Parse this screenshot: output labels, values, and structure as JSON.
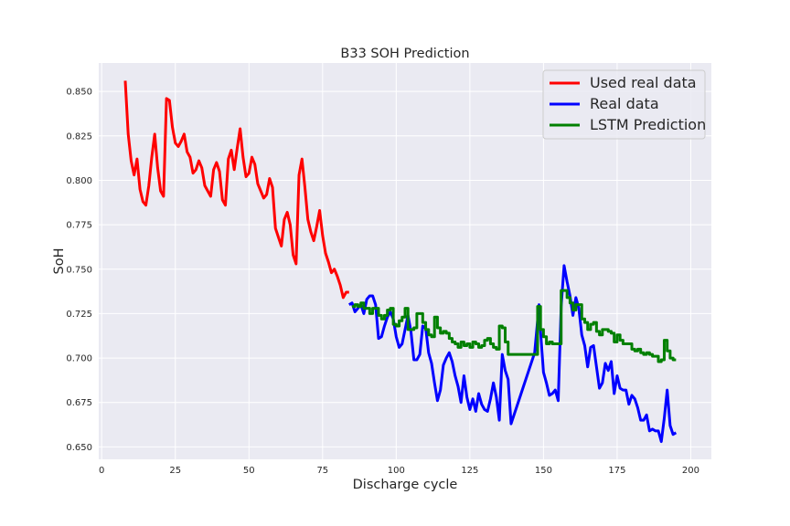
{
  "chart_data": {
    "type": "line",
    "title": "B33 SOH Prediction",
    "xlabel": "Discharge cycle",
    "ylabel": "SoH",
    "xlim": [
      -1,
      207
    ],
    "ylim": [
      0.643,
      0.866
    ],
    "xticks": [
      0,
      25,
      50,
      75,
      100,
      125,
      150,
      175,
      200
    ],
    "yticks": [
      0.65,
      0.675,
      0.7,
      0.725,
      0.75,
      0.775,
      0.8,
      0.825,
      0.85
    ],
    "ytick_labels": [
      "0.650",
      "0.675",
      "0.700",
      "0.725",
      "0.750",
      "0.775",
      "0.800",
      "0.825",
      "0.850"
    ],
    "grid": true,
    "legend_position": "top-right",
    "series": [
      {
        "name": "Used real data",
        "color": "#ff0000",
        "step": false,
        "points": [
          [
            8,
            0.856
          ],
          [
            9,
            0.826
          ],
          [
            10,
            0.811
          ],
          [
            11,
            0.803
          ],
          [
            12,
            0.812
          ],
          [
            13,
            0.795
          ],
          [
            14,
            0.788
          ],
          [
            15,
            0.786
          ],
          [
            16,
            0.797
          ],
          [
            17,
            0.813
          ],
          [
            18,
            0.826
          ],
          [
            19,
            0.807
          ],
          [
            20,
            0.794
          ],
          [
            21,
            0.791
          ],
          [
            22,
            0.846
          ],
          [
            23,
            0.845
          ],
          [
            24,
            0.83
          ],
          [
            25,
            0.821
          ],
          [
            26,
            0.819
          ],
          [
            27,
            0.822
          ],
          [
            28,
            0.826
          ],
          [
            29,
            0.816
          ],
          [
            30,
            0.813
          ],
          [
            31,
            0.804
          ],
          [
            32,
            0.806
          ],
          [
            33,
            0.811
          ],
          [
            34,
            0.807
          ],
          [
            35,
            0.797
          ],
          [
            36,
            0.794
          ],
          [
            37,
            0.791
          ],
          [
            38,
            0.806
          ],
          [
            39,
            0.81
          ],
          [
            40,
            0.805
          ],
          [
            41,
            0.789
          ],
          [
            42,
            0.786
          ],
          [
            43,
            0.812
          ],
          [
            44,
            0.817
          ],
          [
            45,
            0.806
          ],
          [
            46,
            0.818
          ],
          [
            47,
            0.829
          ],
          [
            48,
            0.813
          ],
          [
            49,
            0.802
          ],
          [
            50,
            0.804
          ],
          [
            51,
            0.813
          ],
          [
            52,
            0.809
          ],
          [
            53,
            0.798
          ],
          [
            54,
            0.794
          ],
          [
            55,
            0.79
          ],
          [
            56,
            0.792
          ],
          [
            57,
            0.801
          ],
          [
            58,
            0.796
          ],
          [
            59,
            0.773
          ],
          [
            60,
            0.768
          ],
          [
            61,
            0.763
          ],
          [
            62,
            0.778
          ],
          [
            63,
            0.782
          ],
          [
            64,
            0.775
          ],
          [
            65,
            0.758
          ],
          [
            66,
            0.753
          ],
          [
            67,
            0.803
          ],
          [
            68,
            0.812
          ],
          [
            69,
            0.796
          ],
          [
            70,
            0.778
          ],
          [
            71,
            0.771
          ],
          [
            72,
            0.766
          ],
          [
            73,
            0.774
          ],
          [
            74,
            0.783
          ],
          [
            75,
            0.769
          ],
          [
            76,
            0.759
          ],
          [
            77,
            0.754
          ],
          [
            78,
            0.748
          ],
          [
            79,
            0.75
          ],
          [
            80,
            0.746
          ],
          [
            81,
            0.741
          ],
          [
            82,
            0.734
          ],
          [
            83,
            0.737
          ],
          [
            84,
            0.737
          ]
        ]
      },
      {
        "name": "Real data",
        "color": "#0000ff",
        "step": false,
        "points": [
          [
            84,
            0.73
          ],
          [
            85,
            0.731
          ],
          [
            86,
            0.726
          ],
          [
            87,
            0.728
          ],
          [
            88,
            0.73
          ],
          [
            89,
            0.725
          ],
          [
            90,
            0.733
          ],
          [
            91,
            0.735
          ],
          [
            92,
            0.735
          ],
          [
            93,
            0.73
          ],
          [
            94,
            0.711
          ],
          [
            95,
            0.712
          ],
          [
            96,
            0.718
          ],
          [
            97,
            0.723
          ],
          [
            98,
            0.726
          ],
          [
            99,
            0.722
          ],
          [
            100,
            0.712
          ],
          [
            101,
            0.706
          ],
          [
            102,
            0.708
          ],
          [
            103,
            0.716
          ],
          [
            104,
            0.724
          ],
          [
            105,
            0.715
          ],
          [
            106,
            0.699
          ],
          [
            107,
            0.699
          ],
          [
            108,
            0.702
          ],
          [
            109,
            0.718
          ],
          [
            110,
            0.717
          ],
          [
            111,
            0.703
          ],
          [
            112,
            0.697
          ],
          [
            113,
            0.686
          ],
          [
            114,
            0.676
          ],
          [
            115,
            0.682
          ],
          [
            116,
            0.696
          ],
          [
            117,
            0.7
          ],
          [
            118,
            0.703
          ],
          [
            119,
            0.698
          ],
          [
            120,
            0.69
          ],
          [
            121,
            0.684
          ],
          [
            122,
            0.675
          ],
          [
            123,
            0.69
          ],
          [
            124,
            0.678
          ],
          [
            125,
            0.671
          ],
          [
            126,
            0.677
          ],
          [
            127,
            0.67
          ],
          [
            128,
            0.68
          ],
          [
            129,
            0.674
          ],
          [
            130,
            0.671
          ],
          [
            131,
            0.67
          ],
          [
            132,
            0.677
          ],
          [
            133,
            0.686
          ],
          [
            134,
            0.678
          ],
          [
            135,
            0.665
          ],
          [
            136,
            0.702
          ],
          [
            137,
            0.693
          ],
          [
            138,
            0.688
          ],
          [
            139,
            0.663
          ],
          [
            141,
            0.673
          ],
          [
            143,
            0.683
          ],
          [
            145,
            0.693
          ],
          [
            147,
            0.703
          ],
          [
            148.5,
            0.73
          ],
          [
            149,
            0.715
          ],
          [
            150,
            0.692
          ],
          [
            151,
            0.686
          ],
          [
            152,
            0.679
          ],
          [
            153,
            0.68
          ],
          [
            154,
            0.682
          ],
          [
            155,
            0.676
          ],
          [
            156,
            0.729
          ],
          [
            157,
            0.752
          ],
          [
            158,
            0.743
          ],
          [
            159,
            0.735
          ],
          [
            160,
            0.724
          ],
          [
            161,
            0.734
          ],
          [
            162,
            0.728
          ],
          [
            163,
            0.713
          ],
          [
            164,
            0.707
          ],
          [
            165,
            0.695
          ],
          [
            166,
            0.706
          ],
          [
            167,
            0.707
          ],
          [
            168,
            0.695
          ],
          [
            169,
            0.683
          ],
          [
            170,
            0.686
          ],
          [
            171,
            0.697
          ],
          [
            172,
            0.693
          ],
          [
            173,
            0.698
          ],
          [
            174,
            0.68
          ],
          [
            175,
            0.69
          ],
          [
            176,
            0.683
          ],
          [
            177,
            0.682
          ],
          [
            178,
            0.682
          ],
          [
            179,
            0.674
          ],
          [
            180,
            0.679
          ],
          [
            181,
            0.677
          ],
          [
            182,
            0.672
          ],
          [
            183,
            0.665
          ],
          [
            184,
            0.665
          ],
          [
            185,
            0.668
          ],
          [
            186,
            0.659
          ],
          [
            187,
            0.66
          ],
          [
            188,
            0.659
          ],
          [
            189,
            0.659
          ],
          [
            190,
            0.653
          ],
          [
            191,
            0.666
          ],
          [
            192,
            0.682
          ],
          [
            193,
            0.662
          ],
          [
            194,
            0.657
          ],
          [
            195,
            0.658
          ]
        ]
      },
      {
        "name": "LSTM Prediction",
        "color": "#008000",
        "step": true,
        "points": [
          [
            85,
            0.729
          ],
          [
            86,
            0.73
          ],
          [
            87,
            0.729
          ],
          [
            88,
            0.731
          ],
          [
            89,
            0.728
          ],
          [
            90,
            0.728
          ],
          [
            91,
            0.725
          ],
          [
            92,
            0.728
          ],
          [
            93,
            0.728
          ],
          [
            94,
            0.724
          ],
          [
            95,
            0.722
          ],
          [
            96,
            0.724
          ],
          [
            97,
            0.727
          ],
          [
            98,
            0.728
          ],
          [
            99,
            0.719
          ],
          [
            100,
            0.718
          ],
          [
            101,
            0.721
          ],
          [
            102,
            0.723
          ],
          [
            103,
            0.728
          ],
          [
            104,
            0.716
          ],
          [
            105,
            0.716
          ],
          [
            106,
            0.717
          ],
          [
            107,
            0.725
          ],
          [
            108,
            0.725
          ],
          [
            109,
            0.72
          ],
          [
            110,
            0.716
          ],
          [
            111,
            0.713
          ],
          [
            112,
            0.712
          ],
          [
            113,
            0.723
          ],
          [
            114,
            0.717
          ],
          [
            115,
            0.714
          ],
          [
            116,
            0.715
          ],
          [
            117,
            0.714
          ],
          [
            118,
            0.711
          ],
          [
            119,
            0.709
          ],
          [
            120,
            0.708
          ],
          [
            121,
            0.706
          ],
          [
            122,
            0.709
          ],
          [
            123,
            0.707
          ],
          [
            124,
            0.708
          ],
          [
            125,
            0.706
          ],
          [
            126,
            0.709
          ],
          [
            127,
            0.708
          ],
          [
            128,
            0.706
          ],
          [
            129,
            0.707
          ],
          [
            130,
            0.71
          ],
          [
            131,
            0.711
          ],
          [
            132,
            0.708
          ],
          [
            133,
            0.706
          ],
          [
            134,
            0.705
          ],
          [
            135,
            0.718
          ],
          [
            136,
            0.717
          ],
          [
            137,
            0.709
          ],
          [
            138,
            0.702
          ],
          [
            139,
            0.702
          ],
          [
            140,
            0.702
          ],
          [
            141,
            0.702
          ],
          [
            142,
            0.702
          ],
          [
            143,
            0.702
          ],
          [
            144,
            0.702
          ],
          [
            145,
            0.702
          ],
          [
            146,
            0.702
          ],
          [
            147,
            0.702
          ],
          [
            148,
            0.729
          ],
          [
            149,
            0.716
          ],
          [
            150,
            0.712
          ],
          [
            151,
            0.708
          ],
          [
            152,
            0.709
          ],
          [
            153,
            0.708
          ],
          [
            154,
            0.708
          ],
          [
            155,
            0.708
          ],
          [
            156,
            0.738
          ],
          [
            157,
            0.738
          ],
          [
            158,
            0.734
          ],
          [
            159,
            0.731
          ],
          [
            160,
            0.727
          ],
          [
            161,
            0.73
          ],
          [
            162,
            0.73
          ],
          [
            163,
            0.722
          ],
          [
            164,
            0.72
          ],
          [
            165,
            0.716
          ],
          [
            166,
            0.719
          ],
          [
            167,
            0.72
          ],
          [
            168,
            0.715
          ],
          [
            169,
            0.713
          ],
          [
            170,
            0.716
          ],
          [
            171,
            0.716
          ],
          [
            172,
            0.715
          ],
          [
            173,
            0.714
          ],
          [
            174,
            0.709
          ],
          [
            175,
            0.713
          ],
          [
            176,
            0.71
          ],
          [
            177,
            0.708
          ],
          [
            178,
            0.708
          ],
          [
            179,
            0.708
          ],
          [
            180,
            0.705
          ],
          [
            181,
            0.704
          ],
          [
            182,
            0.705
          ],
          [
            183,
            0.703
          ],
          [
            184,
            0.702
          ],
          [
            185,
            0.703
          ],
          [
            186,
            0.702
          ],
          [
            187,
            0.701
          ],
          [
            188,
            0.701
          ],
          [
            189,
            0.698
          ],
          [
            190,
            0.699
          ],
          [
            191,
            0.71
          ],
          [
            192,
            0.704
          ],
          [
            193,
            0.7
          ],
          [
            194,
            0.699
          ],
          [
            195,
            0.699
          ]
        ]
      }
    ]
  }
}
